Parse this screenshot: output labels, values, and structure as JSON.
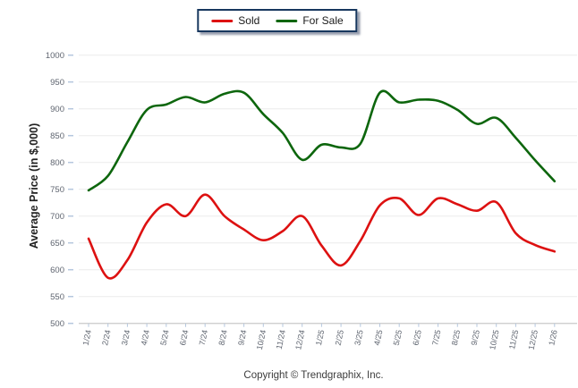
{
  "legend": {
    "items": [
      {
        "label": "Sold",
        "color": "#dd1111"
      },
      {
        "label": "For Sale",
        "color": "#0d660d"
      }
    ]
  },
  "footer": {
    "text": "Copyright © Trendgraphix, Inc."
  },
  "chart_data": {
    "type": "line",
    "title": "",
    "ylabel": "Average Price (in $,000)",
    "xlabel": "",
    "ylim": [
      500,
      1000
    ],
    "y_ticks": [
      1000,
      950,
      900,
      850,
      800,
      750,
      700,
      650,
      600,
      550,
      500
    ],
    "grid": "horizontal",
    "legend_position": "top-center",
    "x": [
      "1/24",
      "2/24",
      "3/24",
      "4/24",
      "5/24",
      "6/24",
      "7/24",
      "8/24",
      "9/24",
      "10/24",
      "11/24",
      "12/24",
      "1/25",
      "2/25",
      "3/25",
      "4/25",
      "5/25",
      "6/25",
      "7/25",
      "8/25",
      "9/25",
      "10/25",
      "11/25",
      "12/25",
      "1/26"
    ],
    "series": [
      {
        "name": "Sold",
        "color": "#dd1111",
        "values": [
          658,
          585,
          618,
          688,
          722,
          700,
          740,
          700,
          675,
          655,
          672,
          700,
          645,
          608,
          654,
          720,
          733,
          702,
          733,
          722,
          710,
          726,
          668,
          646,
          634
        ]
      },
      {
        "name": "For Sale",
        "color": "#0d660d",
        "values": [
          748,
          775,
          838,
          898,
          908,
          922,
          912,
          928,
          930,
          890,
          855,
          805,
          833,
          828,
          835,
          930,
          912,
          917,
          915,
          898,
          872,
          883,
          846,
          804,
          765
        ]
      }
    ]
  }
}
